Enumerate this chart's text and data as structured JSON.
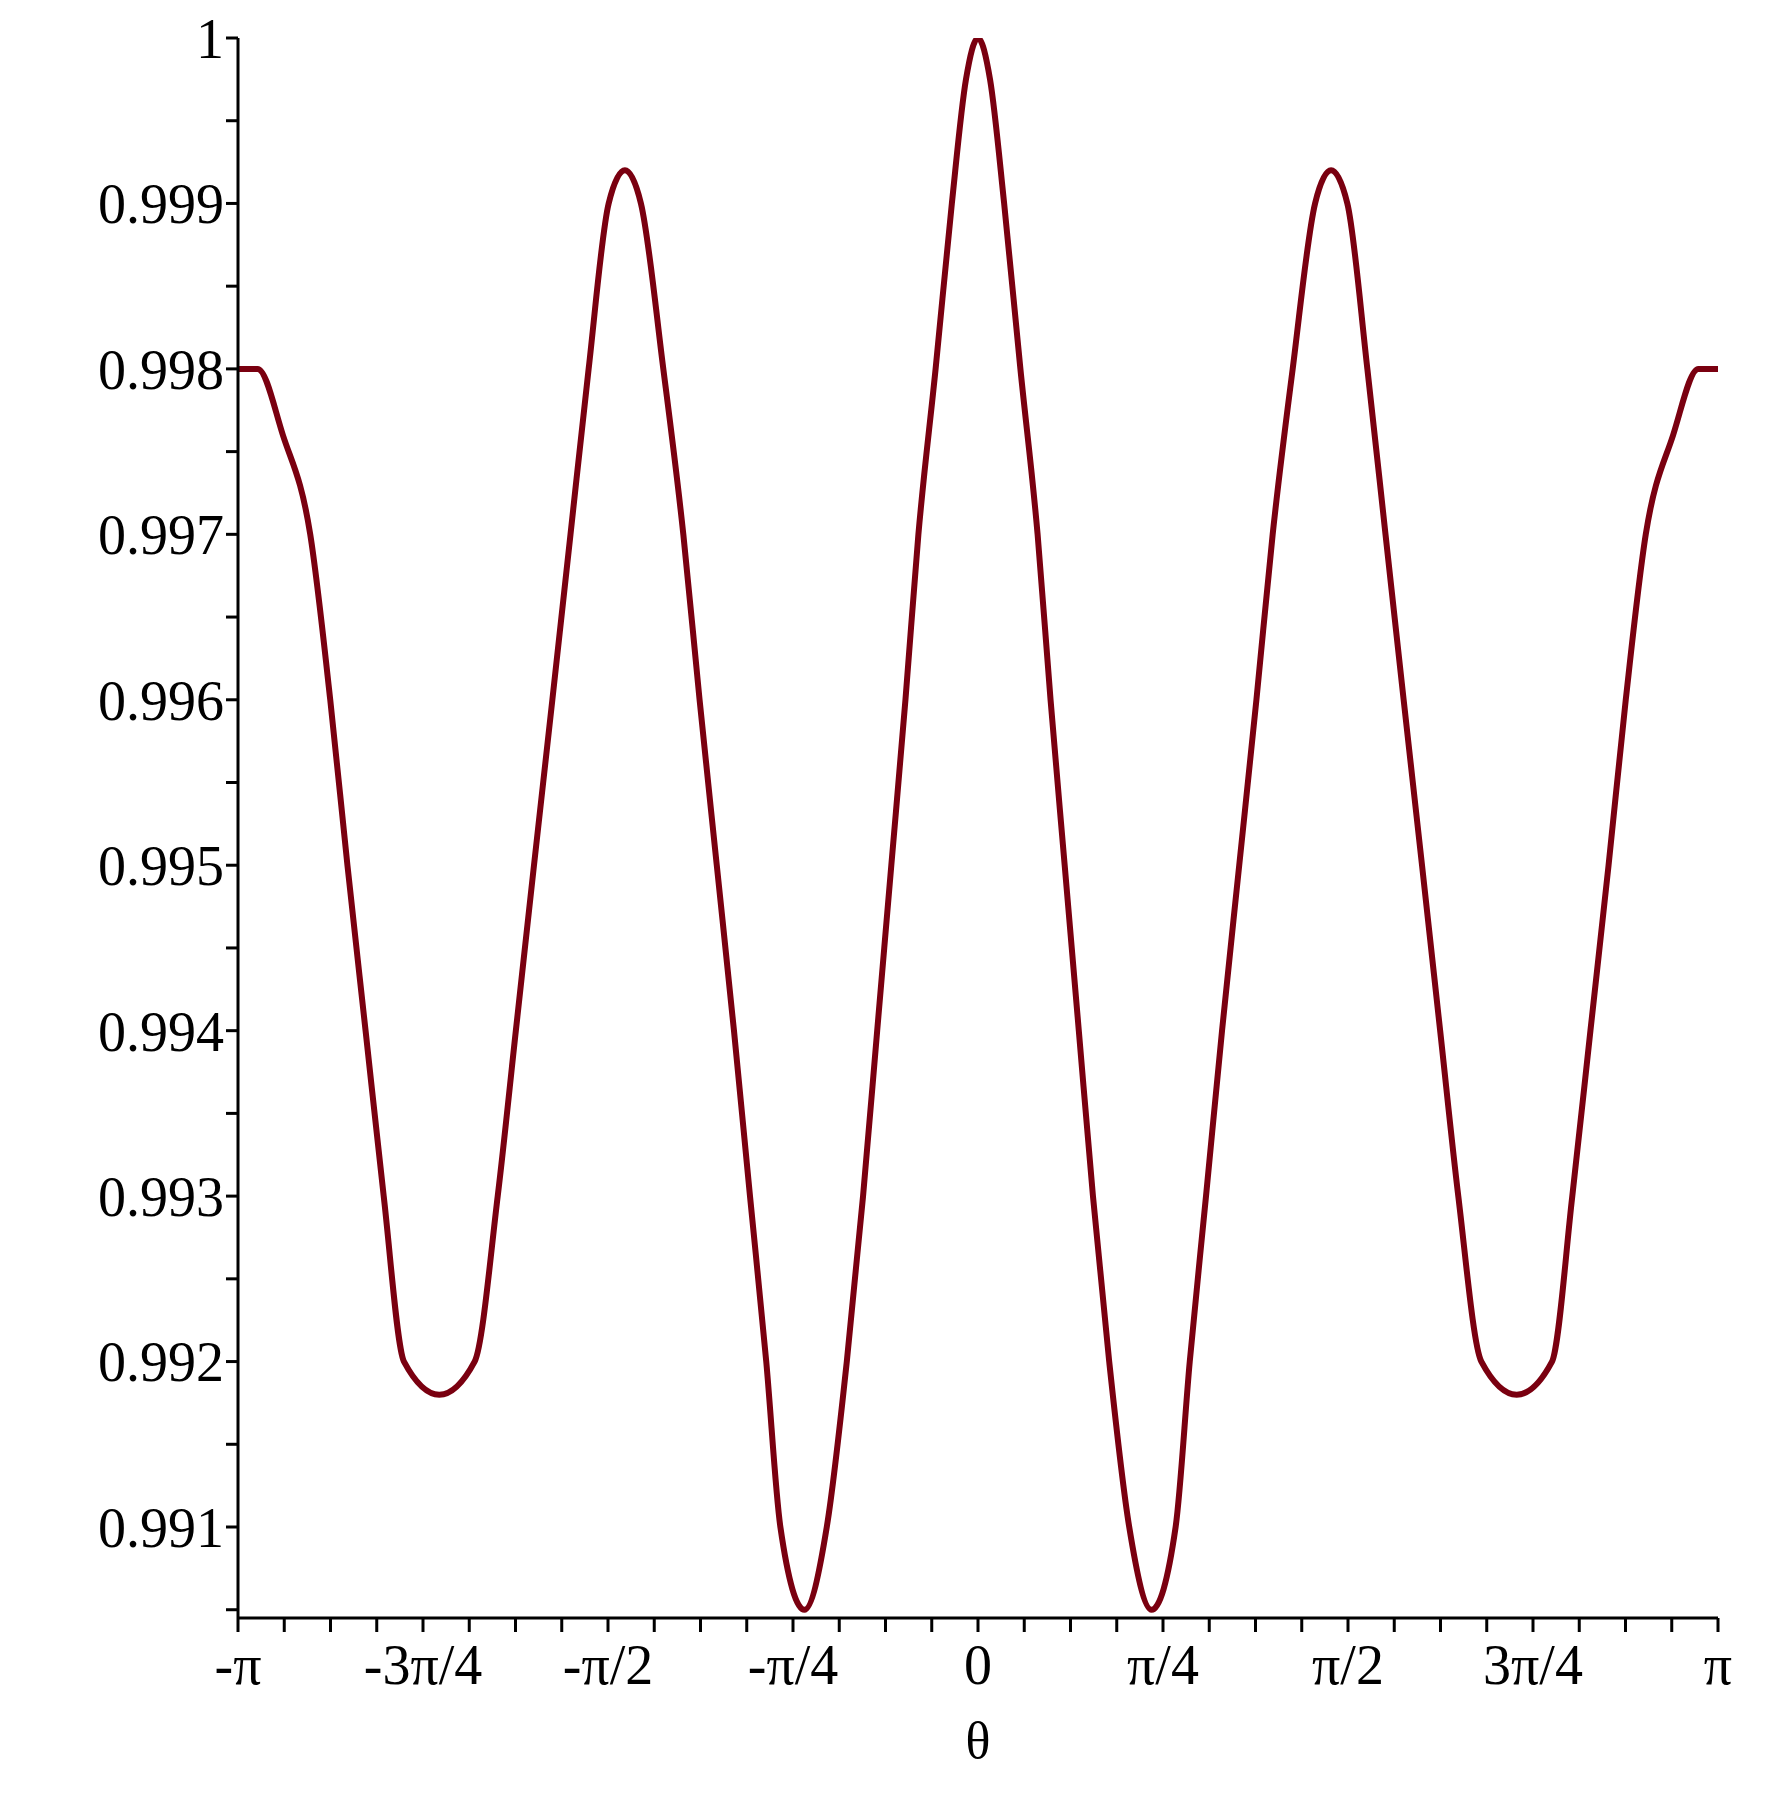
{
  "chart_data": {
    "type": "line",
    "xlabel": "θ",
    "xlim": [
      -3.14159,
      3.14159
    ],
    "ylim": [
      0.99045,
      1
    ],
    "xticks": [
      {
        "value": -3.14159,
        "label": "-π"
      },
      {
        "value": -2.94524,
        "label": null
      },
      {
        "value": -2.74889,
        "label": null
      },
      {
        "value": -2.55254,
        "label": null
      },
      {
        "value": -2.35619,
        "label": "-3π/4"
      },
      {
        "value": -2.15984,
        "label": null
      },
      {
        "value": -1.9635,
        "label": null
      },
      {
        "value": -1.76715,
        "label": null
      },
      {
        "value": -1.5708,
        "label": "-π/2"
      },
      {
        "value": -1.37445,
        "label": null
      },
      {
        "value": -1.1781,
        "label": null
      },
      {
        "value": -0.98175,
        "label": null
      },
      {
        "value": -0.7854,
        "label": "-π/4"
      },
      {
        "value": -0.58905,
        "label": null
      },
      {
        "value": -0.3927,
        "label": null
      },
      {
        "value": -0.19635,
        "label": null
      },
      {
        "value": 0,
        "label": "0"
      },
      {
        "value": 0.19635,
        "label": null
      },
      {
        "value": 0.3927,
        "label": null
      },
      {
        "value": 0.58905,
        "label": null
      },
      {
        "value": 0.7854,
        "label": "π/4"
      },
      {
        "value": 0.98175,
        "label": null
      },
      {
        "value": 1.1781,
        "label": null
      },
      {
        "value": 1.37445,
        "label": null
      },
      {
        "value": 1.5708,
        "label": "π/2"
      },
      {
        "value": 1.76715,
        "label": null
      },
      {
        "value": 1.9635,
        "label": null
      },
      {
        "value": 2.15984,
        "label": null
      },
      {
        "value": 2.35619,
        "label": "3π/4"
      },
      {
        "value": 2.55254,
        "label": null
      },
      {
        "value": 2.74889,
        "label": null
      },
      {
        "value": 2.94524,
        "label": null
      },
      {
        "value": 3.14159,
        "label": "π"
      }
    ],
    "yticks": [
      {
        "value": 0.9905,
        "label": null
      },
      0.991,
      {
        "value": 0.9915,
        "label": null
      },
      0.992,
      {
        "value": 0.9925,
        "label": null
      },
      0.993,
      {
        "value": 0.9935,
        "label": null
      },
      0.994,
      {
        "value": 0.9945,
        "label": null
      },
      0.995,
      {
        "value": 0.9955,
        "label": null
      },
      0.996,
      {
        "value": 0.9965,
        "label": null
      },
      0.997,
      {
        "value": 0.9975,
        "label": null
      },
      0.998,
      {
        "value": 0.9985,
        "label": null
      },
      0.999,
      {
        "value": 0.9995,
        "label": null
      },
      1
    ],
    "marker": "none",
    "line_style": "solid",
    "series": [
      {
        "color": "#7a0010",
        "x": [
          -3.14159,
          -3.058,
          -2.951,
          -2.835,
          -2.75,
          -2.677,
          -2.6,
          -2.523,
          -2.437,
          -2.287,
          -2.137,
          -2.039,
          -1.962,
          -1.885,
          -1.807,
          -1.73,
          -1.653,
          -1.568,
          -1.499,
          -1.431,
          -1.336,
          -1.251,
          -1.182,
          -1.109,
          -1.036,
          -0.968,
          -0.899,
          -0.839,
          -0.737,
          -0.642,
          -0.557,
          -0.488,
          -0.428,
          -0.368,
          -0.308,
          -0.253,
          -0.18,
          -0.111,
          -0.051,
          0,
          0.051,
          0.111,
          0.18,
          0.253,
          0.308,
          0.368,
          0.428,
          0.488,
          0.557,
          0.642,
          0.737,
          0.839,
          0.899,
          0.968,
          1.036,
          1.109,
          1.182,
          1.251,
          1.336,
          1.431,
          1.499,
          1.568,
          1.653,
          1.73,
          1.807,
          1.885,
          1.962,
          2.039,
          2.137,
          2.287,
          2.437,
          2.523,
          2.6,
          2.677,
          2.75,
          2.835,
          2.951,
          3.058,
          3.14159
        ],
        "values": [
          0.998,
          0.998,
          0.9976,
          0.997,
          0.996,
          0.995,
          0.994,
          0.993,
          0.992,
          0.9918,
          0.992,
          0.993,
          0.994,
          0.995,
          0.996,
          0.997,
          0.998,
          0.999,
          0.9992,
          0.999,
          0.998,
          0.997,
          0.996,
          0.995,
          0.994,
          0.993,
          0.992,
          0.991,
          0.9905,
          0.991,
          0.992,
          0.993,
          0.994,
          0.995,
          0.996,
          0.997,
          0.998,
          0.999,
          0.99975,
          1,
          0.99975,
          0.999,
          0.998,
          0.997,
          0.996,
          0.995,
          0.994,
          0.993,
          0.992,
          0.991,
          0.9905,
          0.991,
          0.992,
          0.993,
          0.994,
          0.995,
          0.996,
          0.997,
          0.998,
          0.999,
          0.9992,
          0.999,
          0.998,
          0.997,
          0.996,
          0.995,
          0.994,
          0.993,
          0.992,
          0.9918,
          0.992,
          0.993,
          0.994,
          0.995,
          0.996,
          0.997,
          0.9976,
          0.998,
          0.998
        ]
      }
    ]
  }
}
